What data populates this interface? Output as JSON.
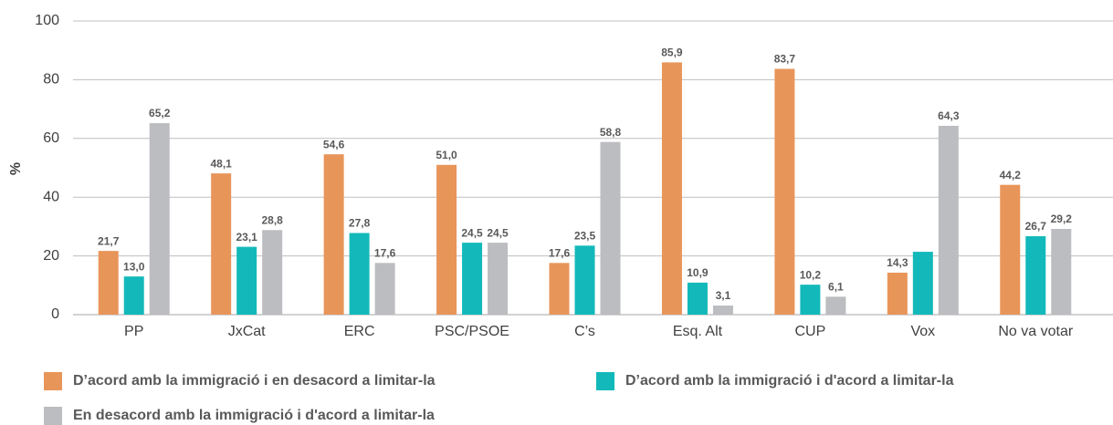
{
  "chart_data": {
    "type": "bar",
    "y_label": "%",
    "categories": [
      "PP",
      "JxCat",
      "ERC",
      "PSC/PSOE",
      "C’s",
      "Esq. Alt",
      "CUP",
      "Vox",
      "No va votar"
    ],
    "series": [
      {
        "name": "D’acord amb la immigració i en desacord a limitar-la",
        "color": "#E8955A",
        "values": [
          21.7,
          48.1,
          54.6,
          51.0,
          17.6,
          85.9,
          83.7,
          14.3,
          44.2
        ],
        "value_labels": [
          "21,7",
          "48,1",
          "54,6",
          "51,0",
          "17,6",
          "85,9",
          "83,7",
          "14,3",
          "44,2"
        ]
      },
      {
        "name": "D’acord amb la immigració i d'acord a limitar-la",
        "color": "#13B9BA",
        "values": [
          13.0,
          23.1,
          27.8,
          24.5,
          23.5,
          10.9,
          10.2,
          21.4,
          26.7
        ],
        "value_labels": [
          "13,0",
          "23,1",
          "27,8",
          "24,5",
          "23,5",
          "10,9",
          "10,2",
          null,
          "26,7"
        ]
      },
      {
        "name": "En desacord amb la immigració i d'acord a limitar-la",
        "color": "#BCBDC0",
        "values": [
          65.2,
          28.8,
          17.6,
          24.5,
          58.8,
          3.1,
          6.1,
          64.3,
          29.2
        ],
        "value_labels": [
          "65,2",
          "28,8",
          "17,6",
          "24,5",
          "58,8",
          "3,1",
          "6,1",
          "64,3",
          "29,2"
        ]
      }
    ],
    "ylim": [
      0,
      100
    ],
    "yticks": [
      0,
      20,
      40,
      60,
      80,
      100
    ],
    "grid": true
  }
}
